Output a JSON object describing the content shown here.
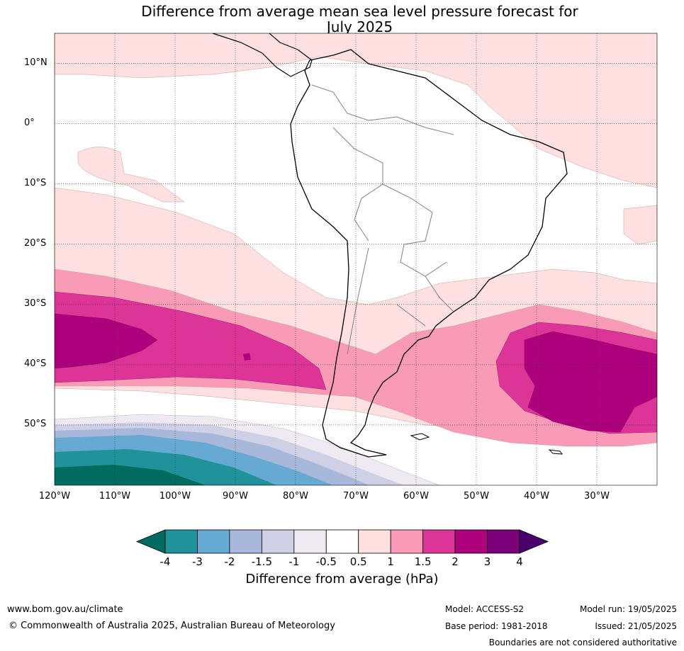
{
  "title": {
    "line1": "Difference from average mean sea level pressure forecast for",
    "line2": "July 2025"
  },
  "axes": {
    "lat_labels": [
      "10°N",
      "0°",
      "10°S",
      "20°S",
      "30°S",
      "40°S",
      "50°S"
    ],
    "lon_labels": [
      "120°W",
      "110°W",
      "100°W",
      "90°W",
      "80°W",
      "70°W",
      "60°W",
      "50°W",
      "40°W",
      "30°W"
    ],
    "lat_range": [
      -60,
      15
    ],
    "lon_range": [
      -120,
      -20
    ],
    "grid": true
  },
  "colorbar": {
    "title": "Difference from average (hPa)",
    "ticks": [
      "-4",
      "-3",
      "-2",
      "-1.5",
      "-1",
      "-0.5",
      "0.5",
      "1",
      "1.5",
      "2",
      "3",
      "4"
    ],
    "colors": [
      "#006b5e",
      "#1f9399",
      "#66a9d2",
      "#a7b8db",
      "#cfd0e6",
      "#efe9f1",
      "#ffffff",
      "#fde0df",
      "#f99bb6",
      "#dd3497",
      "#ae017e",
      "#7a0177",
      "#49006a"
    ]
  },
  "footer": {
    "url": "www.bom.gov.au/climate",
    "copyright": "© Commonwealth of Australia 2025, Australian Bureau of Meteorology",
    "model": "Model: ACCESS-S2",
    "base_period": "Base period: 1981-2018",
    "model_run": "Model run: 19/05/2025",
    "issued": "Issued: 21/05/2025",
    "disclaimer": "Boundaries are not considered authoritative"
  }
}
